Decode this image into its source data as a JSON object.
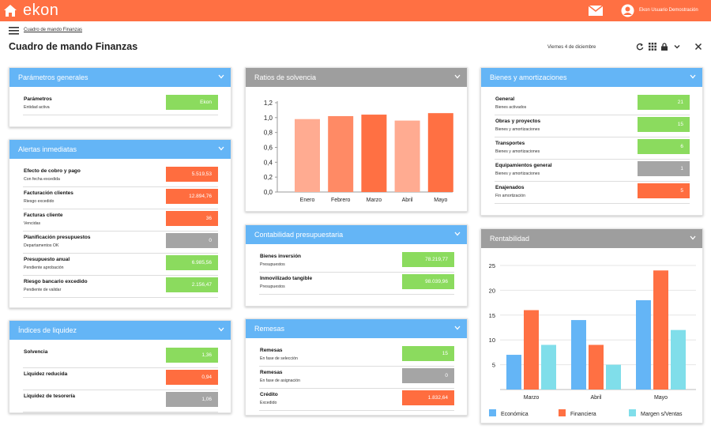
{
  "header": {
    "logo": "ekon",
    "user": "Ekon Usuario Demostración",
    "breadcrumb": "Cuadro de mando Finanzas",
    "title": "Cuadro de mando Finanzas",
    "date": "Viernes 4 de diciembre"
  },
  "parametros": {
    "title": "Parámetros generales",
    "rows": [
      {
        "label": "Parámetros",
        "sub": "Entidad activa",
        "value": "Ekon",
        "status": "green"
      }
    ]
  },
  "alertas": {
    "title": "Alertas inmediatas",
    "rows": [
      {
        "label": "Efecto de cobro y pago",
        "sub": "Con fecha excedida",
        "value": "5.519,53",
        "status": "red"
      },
      {
        "label": "Facturación clientes",
        "sub": "Riesgo excedido",
        "value": "12.894,76",
        "status": "red"
      },
      {
        "label": "Facturas cliente",
        "sub": "Vencidas",
        "value": "36",
        "status": "red"
      },
      {
        "label": "Planificación presupuestos",
        "sub": "Departamentos OK",
        "value": "0",
        "status": "grey"
      },
      {
        "label": "Presupuesto anual",
        "sub": "Pendiente aprobación",
        "value": "6.985,56",
        "status": "green"
      },
      {
        "label": "Riesgo bancario excedido",
        "sub": "Pendiente de validar",
        "value": "2.156,47",
        "status": "green"
      }
    ]
  },
  "liquidez": {
    "title": "Índices de liquidez",
    "rows": [
      {
        "label": "Solvencia",
        "sub": "",
        "value": "1,36",
        "status": "green"
      },
      {
        "label": "Liquidez reducida",
        "sub": "",
        "value": "0,94",
        "status": "red"
      },
      {
        "label": "Liquidez de tesorería",
        "sub": "",
        "value": "1,06",
        "status": "grey"
      }
    ]
  },
  "ratios": {
    "title": "Ratios de solvencia"
  },
  "contabilidad": {
    "title": "Contabilidad presupuestaria",
    "rows": [
      {
        "label": "Bienes inversión",
        "sub": "Presupuestos",
        "value": "78.219,77",
        "status": "green"
      },
      {
        "label": "Inmovilizado tangible",
        "sub": "Presupuestos",
        "value": "98.039,96",
        "status": "green"
      }
    ]
  },
  "remesas": {
    "title": "Remesas",
    "rows": [
      {
        "label": "Remesas",
        "sub": "En fase de selección",
        "value": "15",
        "status": "green"
      },
      {
        "label": "Remesas",
        "sub": "En fase de asignación",
        "value": "0",
        "status": "grey"
      },
      {
        "label": "Crédito",
        "sub": "Excedido",
        "value": "1.832,64",
        "status": "red"
      }
    ]
  },
  "bienes": {
    "title": "Bienes y amortizaciones",
    "rows": [
      {
        "label": "General",
        "sub": "Bienes activados",
        "value": "21",
        "status": "green"
      },
      {
        "label": "Obras y proyectos",
        "sub": "Bienes y amortizaciones",
        "value": "15",
        "status": "green"
      },
      {
        "label": "Transportes",
        "sub": "Bienes y amortizaciones",
        "value": "6",
        "status": "green"
      },
      {
        "label": "Equipamientos general",
        "sub": "Bienes y amortizaciones",
        "value": "1",
        "status": "grey"
      },
      {
        "label": "Enajenados",
        "sub": "Fin amortización",
        "value": "5",
        "status": "red"
      }
    ]
  },
  "rentabilidad": {
    "title": "Rentabilidad"
  },
  "chart_data": [
    {
      "type": "bar",
      "title": "Ratios de solvencia",
      "categories": [
        "Enero",
        "Febrero",
        "Marzo",
        "Abril",
        "Mayo"
      ],
      "values": [
        0.98,
        1.02,
        1.04,
        0.96,
        1.06
      ],
      "colors": [
        "#ffab91",
        "#ff8a65",
        "#ff7043",
        "#ffab91",
        "#ff7043"
      ],
      "yticks": [
        "0,0",
        "0,2",
        "0,4",
        "0,6",
        "0,8",
        "1,0",
        "1,2"
      ],
      "ylim": [
        0,
        1.2
      ]
    },
    {
      "type": "bar",
      "title": "Rentabilidad",
      "categories": [
        "Marzo",
        "Abril",
        "Mayo"
      ],
      "series": [
        {
          "name": "Económica",
          "values": [
            7,
            14,
            18
          ],
          "color": "#64b5f6"
        },
        {
          "name": "Financiera",
          "values": [
            16,
            9,
            24
          ],
          "color": "#ff7043"
        },
        {
          "name": "Margen s/Ventas",
          "values": [
            9,
            5,
            12
          ],
          "color": "#80deea"
        }
      ],
      "yticks": [
        "5",
        "10",
        "15",
        "20",
        "25"
      ],
      "ylim": [
        0,
        25
      ]
    }
  ]
}
